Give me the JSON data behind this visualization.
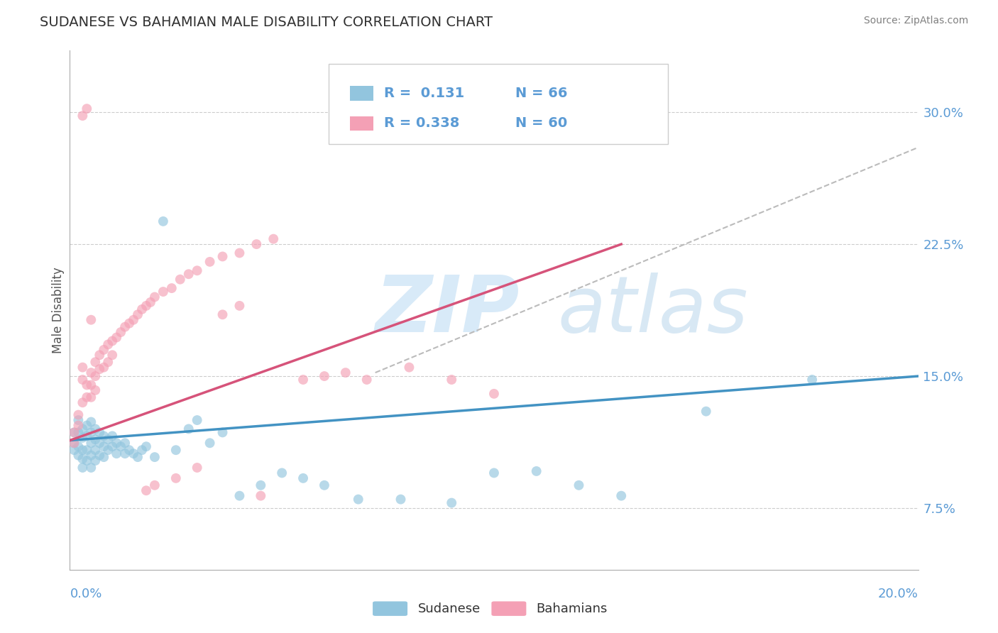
{
  "title": "SUDANESE VS BAHAMIAN MALE DISABILITY CORRELATION CHART",
  "source": "Source: ZipAtlas.com",
  "ylabel": "Male Disability",
  "y_ticks": [
    0.075,
    0.15,
    0.225,
    0.3
  ],
  "y_tick_labels": [
    "7.5%",
    "15.0%",
    "22.5%",
    "30.0%"
  ],
  "xlim": [
    0.0,
    0.2
  ],
  "ylim": [
    0.04,
    0.335
  ],
  "blue_color": "#92c5de",
  "pink_color": "#f4a0b5",
  "blue_line_color": "#4393c3",
  "pink_line_color": "#d6537a",
  "gray_dash_color": "#bbbbbb",
  "background_color": "#ffffff",
  "grid_color": "#cccccc",
  "title_color": "#303030",
  "source_color": "#808080",
  "legend_r1": "R =  0.131",
  "legend_n1": "N = 66",
  "legend_r2": "R = 0.338",
  "legend_n2": "N = 60",
  "sudanese_x": [
    0.001,
    0.001,
    0.001,
    0.002,
    0.002,
    0.002,
    0.002,
    0.003,
    0.003,
    0.003,
    0.003,
    0.003,
    0.004,
    0.004,
    0.004,
    0.004,
    0.005,
    0.005,
    0.005,
    0.005,
    0.005,
    0.006,
    0.006,
    0.006,
    0.006,
    0.007,
    0.007,
    0.007,
    0.008,
    0.008,
    0.008,
    0.009,
    0.009,
    0.01,
    0.01,
    0.011,
    0.011,
    0.012,
    0.013,
    0.013,
    0.014,
    0.015,
    0.016,
    0.017,
    0.018,
    0.02,
    0.022,
    0.025,
    0.028,
    0.03,
    0.033,
    0.036,
    0.04,
    0.045,
    0.05,
    0.055,
    0.06,
    0.068,
    0.078,
    0.09,
    0.1,
    0.11,
    0.12,
    0.13,
    0.15,
    0.175
  ],
  "sudanese_y": [
    0.118,
    0.112,
    0.108,
    0.125,
    0.118,
    0.11,
    0.105,
    0.12,
    0.115,
    0.108,
    0.103,
    0.098,
    0.122,
    0.116,
    0.108,
    0.102,
    0.124,
    0.118,
    0.112,
    0.105,
    0.098,
    0.12,
    0.114,
    0.108,
    0.102,
    0.118,
    0.112,
    0.105,
    0.116,
    0.11,
    0.104,
    0.114,
    0.108,
    0.116,
    0.11,
    0.112,
    0.106,
    0.11,
    0.112,
    0.106,
    0.108,
    0.106,
    0.104,
    0.108,
    0.11,
    0.104,
    0.238,
    0.108,
    0.12,
    0.125,
    0.112,
    0.118,
    0.082,
    0.088,
    0.095,
    0.092,
    0.088,
    0.08,
    0.08,
    0.078,
    0.095,
    0.096,
    0.088,
    0.082,
    0.13,
    0.148
  ],
  "bahamian_x": [
    0.001,
    0.001,
    0.002,
    0.002,
    0.003,
    0.003,
    0.003,
    0.004,
    0.004,
    0.005,
    0.005,
    0.005,
    0.006,
    0.006,
    0.006,
    0.007,
    0.007,
    0.008,
    0.008,
    0.009,
    0.009,
    0.01,
    0.01,
    0.011,
    0.012,
    0.013,
    0.014,
    0.015,
    0.016,
    0.017,
    0.018,
    0.019,
    0.02,
    0.022,
    0.024,
    0.026,
    0.028,
    0.03,
    0.033,
    0.036,
    0.04,
    0.044,
    0.048,
    0.055,
    0.06,
    0.065,
    0.07,
    0.08,
    0.09,
    0.1,
    0.036,
    0.04,
    0.045,
    0.018,
    0.02,
    0.025,
    0.03,
    0.003,
    0.004,
    0.005
  ],
  "bahamian_y": [
    0.118,
    0.112,
    0.128,
    0.122,
    0.155,
    0.148,
    0.135,
    0.145,
    0.138,
    0.152,
    0.145,
    0.138,
    0.158,
    0.15,
    0.142,
    0.162,
    0.154,
    0.165,
    0.155,
    0.168,
    0.158,
    0.17,
    0.162,
    0.172,
    0.175,
    0.178,
    0.18,
    0.182,
    0.185,
    0.188,
    0.19,
    0.192,
    0.195,
    0.198,
    0.2,
    0.205,
    0.208,
    0.21,
    0.215,
    0.218,
    0.22,
    0.225,
    0.228,
    0.148,
    0.15,
    0.152,
    0.148,
    0.155,
    0.148,
    0.14,
    0.185,
    0.19,
    0.082,
    0.085,
    0.088,
    0.092,
    0.098,
    0.298,
    0.302,
    0.182
  ],
  "blue_trend_x0": 0.0,
  "blue_trend_y0": 0.1135,
  "blue_trend_x1": 0.2,
  "blue_trend_y1": 0.15,
  "pink_trend_x0": 0.0,
  "pink_trend_y0": 0.1135,
  "pink_trend_x1": 0.13,
  "pink_trend_y1": 0.225,
  "gray_trend_x0": 0.072,
  "gray_trend_y0": 0.152,
  "gray_trend_x1": 0.2,
  "gray_trend_y1": 0.28
}
